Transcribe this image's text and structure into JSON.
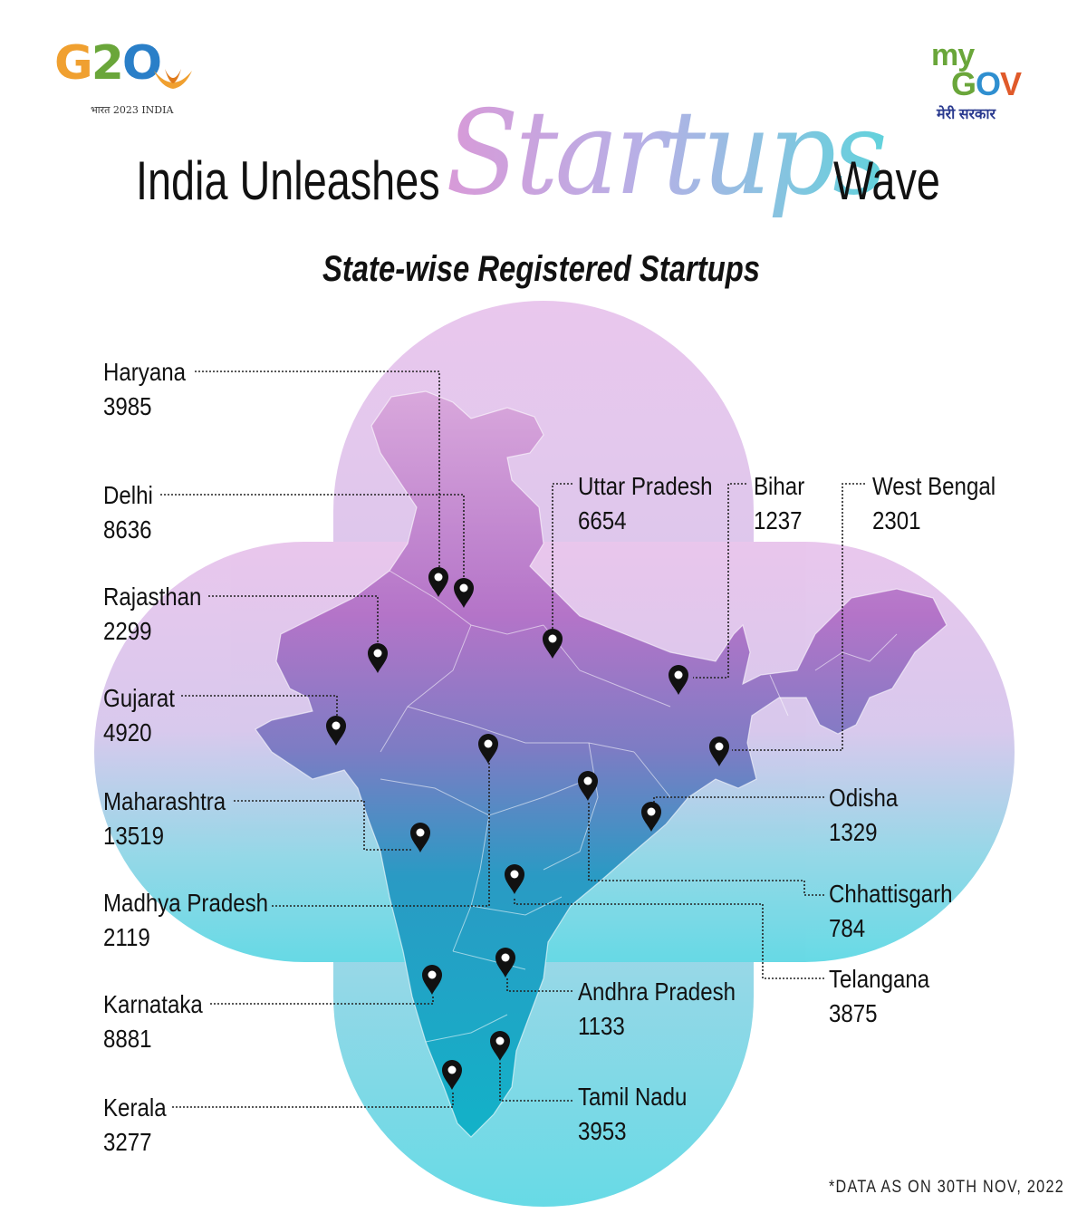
{
  "header": {
    "title_left": "India Unleashes",
    "title_script": "Startups",
    "title_right": "Wave",
    "subtitle": "State-wise Registered Startups"
  },
  "logos": {
    "g20": {
      "text": "G20",
      "subtitle": "भारत 2023 INDIA"
    },
    "mygov": {
      "my": "my",
      "gov": "GOV",
      "subtitle": "मेरी सरकार"
    }
  },
  "colors": {
    "petal_top": "#e4bce8",
    "petal_bottom": "#63d8e4",
    "map_top": "#c070c8",
    "map_mid": "#7a80c6",
    "map_bottom": "#18a8c0",
    "pin": "#111111"
  },
  "states": [
    {
      "name": "Haryana",
      "value": "3985"
    },
    {
      "name": "Delhi",
      "value": "8636"
    },
    {
      "name": "Rajasthan",
      "value": "2299"
    },
    {
      "name": "Gujarat",
      "value": "4920"
    },
    {
      "name": "Maharashtra",
      "value": "13519"
    },
    {
      "name": "Madhya Pradesh",
      "value": "2119"
    },
    {
      "name": "Karnataka",
      "value": "8881"
    },
    {
      "name": "Kerala",
      "value": "3277"
    },
    {
      "name": "Uttar Pradesh",
      "value": "6654"
    },
    {
      "name": "Bihar",
      "value": "1237"
    },
    {
      "name": "West Bengal",
      "value": "2301"
    },
    {
      "name": "Odisha",
      "value": "1329"
    },
    {
      "name": "Chhattisgarh",
      "value": "784"
    },
    {
      "name": "Telangana",
      "value": "3875"
    },
    {
      "name": "Andhra Pradesh",
      "value": "1133"
    },
    {
      "name": "Tamil Nadu",
      "value": "3953"
    }
  ],
  "footnote": "*DATA AS ON 30TH NOV, 2022"
}
